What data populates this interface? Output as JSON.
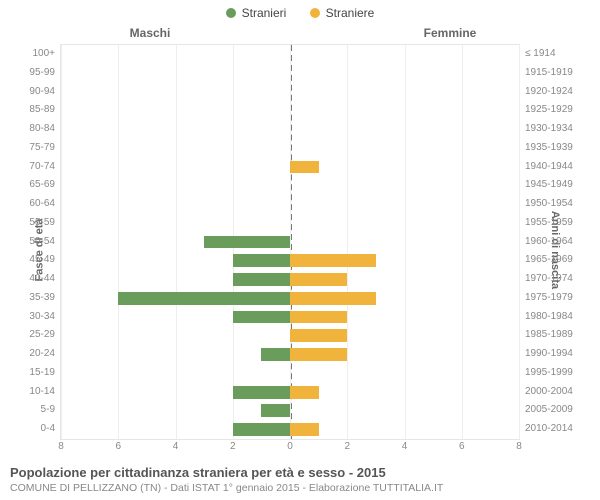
{
  "legend": {
    "male_label": "Stranieri",
    "female_label": "Straniere",
    "male_color": "#6a9c5b",
    "female_color": "#f0b43c"
  },
  "headers": {
    "left": "Maschi",
    "right": "Femmine"
  },
  "axis_labels": {
    "left": "Fasce di età",
    "right": "Anni di nascita"
  },
  "caption": {
    "title": "Popolazione per cittadinanza straniera per età e sesso - 2015",
    "sub": "COMUNE DI PELLIZZANO (TN) - Dati ISTAT 1° gennaio 2015 - Elaborazione TUTTITALIA.IT"
  },
  "chart": {
    "type": "population-pyramid",
    "max_value": 8,
    "x_ticks": [
      8,
      6,
      4,
      2,
      0,
      2,
      4,
      6,
      8
    ],
    "background_color": "#ffffff",
    "grid_color": "#eeeeee",
    "rows": [
      {
        "age": "100+",
        "years": "≤ 1914",
        "male": 0,
        "female": 0
      },
      {
        "age": "95-99",
        "years": "1915-1919",
        "male": 0,
        "female": 0
      },
      {
        "age": "90-94",
        "years": "1920-1924",
        "male": 0,
        "female": 0
      },
      {
        "age": "85-89",
        "years": "1925-1929",
        "male": 0,
        "female": 0
      },
      {
        "age": "80-84",
        "years": "1930-1934",
        "male": 0,
        "female": 0
      },
      {
        "age": "75-79",
        "years": "1935-1939",
        "male": 0,
        "female": 0
      },
      {
        "age": "70-74",
        "years": "1940-1944",
        "male": 0,
        "female": 1
      },
      {
        "age": "65-69",
        "years": "1945-1949",
        "male": 0,
        "female": 0
      },
      {
        "age": "60-64",
        "years": "1950-1954",
        "male": 0,
        "female": 0
      },
      {
        "age": "55-59",
        "years": "1955-1959",
        "male": 0,
        "female": 0
      },
      {
        "age": "50-54",
        "years": "1960-1964",
        "male": 3,
        "female": 0
      },
      {
        "age": "45-49",
        "years": "1965-1969",
        "male": 2,
        "female": 3
      },
      {
        "age": "40-44",
        "years": "1970-1974",
        "male": 2,
        "female": 2
      },
      {
        "age": "35-39",
        "years": "1975-1979",
        "male": 6,
        "female": 3
      },
      {
        "age": "30-34",
        "years": "1980-1984",
        "male": 2,
        "female": 2
      },
      {
        "age": "25-29",
        "years": "1985-1989",
        "male": 0,
        "female": 2
      },
      {
        "age": "20-24",
        "years": "1990-1994",
        "male": 1,
        "female": 2
      },
      {
        "age": "15-19",
        "years": "1995-1999",
        "male": 0,
        "female": 0
      },
      {
        "age": "10-14",
        "years": "2000-2004",
        "male": 2,
        "female": 1
      },
      {
        "age": "5-9",
        "years": "2005-2009",
        "male": 1,
        "female": 0
      },
      {
        "age": "0-4",
        "years": "2010-2014",
        "male": 2,
        "female": 1
      }
    ]
  }
}
